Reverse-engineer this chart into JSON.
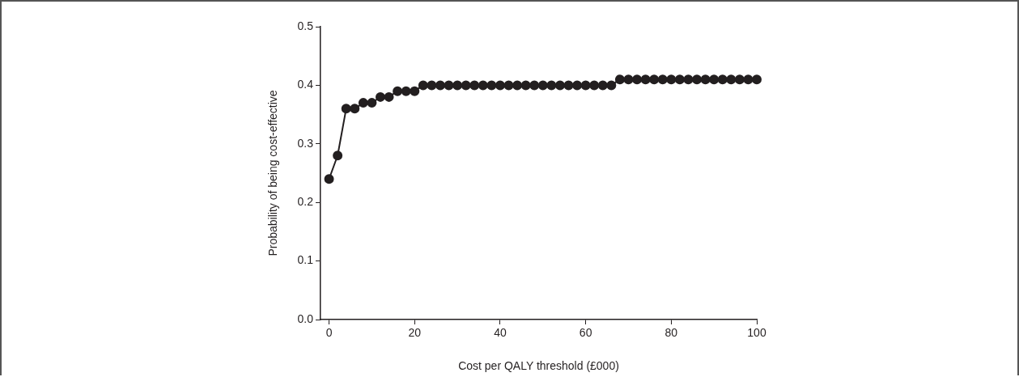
{
  "chart_data": {
    "type": "line",
    "xlabel": "Cost per QALY threshold (£000)",
    "ylabel": "Probability of being cost-effective",
    "x": [
      0,
      2,
      4,
      6,
      8,
      10,
      12,
      14,
      16,
      18,
      20,
      22,
      24,
      26,
      28,
      30,
      32,
      34,
      36,
      38,
      40,
      42,
      44,
      46,
      48,
      50,
      52,
      54,
      56,
      58,
      60,
      62,
      64,
      66,
      68,
      70,
      72,
      74,
      76,
      78,
      80,
      82,
      84,
      86,
      88,
      90,
      92,
      94,
      96,
      98,
      100
    ],
    "series": [
      {
        "color": "#231f20",
        "values": [
          0.24,
          0.28,
          0.36,
          0.36,
          0.37,
          0.37,
          0.38,
          0.38,
          0.39,
          0.39,
          0.39,
          0.4,
          0.4,
          0.4,
          0.4,
          0.4,
          0.4,
          0.4,
          0.4,
          0.4,
          0.4,
          0.4,
          0.4,
          0.4,
          0.4,
          0.4,
          0.4,
          0.4,
          0.4,
          0.4,
          0.4,
          0.4,
          0.4,
          0.4,
          0.41,
          0.41,
          0.41,
          0.41,
          0.41,
          0.41,
          0.41,
          0.41,
          0.41,
          0.41,
          0.41,
          0.41,
          0.41,
          0.41,
          0.41,
          0.41,
          0.41
        ]
      }
    ],
    "xlim": [
      -2,
      100
    ],
    "xticks": [
      0,
      20,
      40,
      60,
      80,
      100
    ],
    "ylim": [
      0,
      0.5
    ],
    "yticks": [
      {
        "value": 0,
        "label": "0.0"
      },
      0.1,
      0.2,
      0.3,
      0.4,
      0.5
    ],
    "marker": "circle",
    "line_style": "solid",
    "grid": false,
    "legend": false
  }
}
